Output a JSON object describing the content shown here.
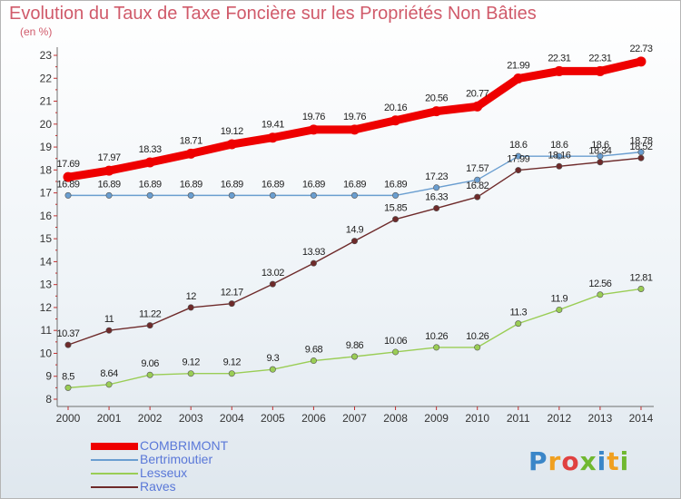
{
  "chart_data": {
    "type": "line",
    "title": "Evolution du Taux de Taxe Foncière sur les Propriétés Non Bâties",
    "subtitle": "(en %)",
    "categories": [
      "2000",
      "2001",
      "2002",
      "2003",
      "2004",
      "2005",
      "2006",
      "2007",
      "2008",
      "2009",
      "2010",
      "2011",
      "2012",
      "2013",
      "2014"
    ],
    "ylim": [
      8,
      23
    ],
    "yticks": [
      "8",
      "9",
      "10",
      "11",
      "12",
      "13",
      "14",
      "15",
      "16",
      "17",
      "18",
      "19",
      "20",
      "21",
      "22",
      "23"
    ],
    "grid": false,
    "legend_position": "bottom-left",
    "series": [
      {
        "name": "COMBRIMONT",
        "color": "#ee0000",
        "values": [
          17.69,
          17.97,
          18.33,
          18.71,
          19.12,
          19.41,
          19.76,
          19.76,
          20.16,
          20.56,
          20.77,
          21.99,
          22.31,
          22.31,
          22.73
        ],
        "labels": [
          "17.69",
          "17.97",
          "18.33",
          "18.71",
          "19.12",
          "19.41",
          "19.76",
          "19.76",
          "20.16",
          "20.56",
          "20.77",
          "21.99",
          "22.31",
          "22.31",
          "22.73"
        ]
      },
      {
        "name": "Bertrimoutier",
        "color": "#6a9ed0",
        "values": [
          16.89,
          16.89,
          16.89,
          16.89,
          16.89,
          16.89,
          16.89,
          16.89,
          16.89,
          17.23,
          17.57,
          18.6,
          18.6,
          18.6,
          18.78
        ],
        "labels": [
          "16.89",
          "16.89",
          "16.89",
          "16.89",
          "16.89",
          "16.89",
          "16.89",
          "16.89",
          "16.89",
          "17.23",
          "17.57",
          "18.6",
          "18.6",
          "18.6",
          "18.78"
        ]
      },
      {
        "name": "Lesseux",
        "color": "#9acd55",
        "values": [
          8.5,
          8.64,
          9.06,
          9.12,
          9.12,
          9.3,
          9.68,
          9.86,
          10.06,
          10.26,
          10.26,
          11.3,
          11.9,
          12.56,
          12.81
        ],
        "labels": [
          "8.5",
          "8.64",
          "9.06",
          "9.12",
          "9.12",
          "9.3",
          "9.68",
          "9.86",
          "10.06",
          "10.26",
          "10.26",
          "11.3",
          "11.9",
          "12.56",
          "12.81"
        ]
      },
      {
        "name": "Raves",
        "color": "#6e2a2a",
        "values": [
          10.37,
          11,
          11.22,
          12,
          12.17,
          13.02,
          13.93,
          14.9,
          15.85,
          16.33,
          16.82,
          17.99,
          18.16,
          18.34,
          18.52
        ],
        "labels": [
          "10.37",
          "11",
          "11.22",
          "12",
          "12.17",
          "13.02",
          "13.93",
          "14.9",
          "15.85",
          "16.33",
          "16.82",
          "17.99",
          "18.16",
          "18.34",
          "18.52"
        ]
      }
    ]
  },
  "logo": {
    "letters": [
      "P",
      "r",
      "o",
      "x",
      "i",
      "t",
      "i"
    ],
    "colors": [
      "#3a86c8",
      "#f0a020",
      "#e04040",
      "#70b830",
      "#3a86c8",
      "#f0a020",
      "#70b830"
    ]
  }
}
